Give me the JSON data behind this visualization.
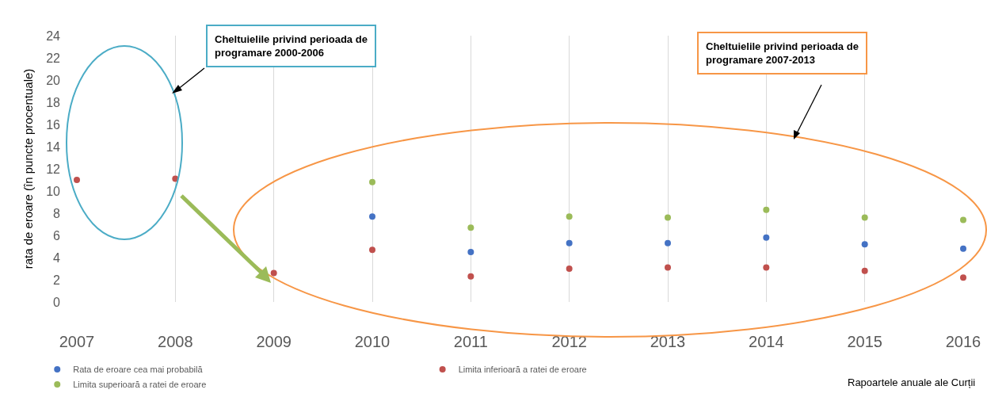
{
  "chart_data": {
    "type": "scatter",
    "ylabel": "rata de eroare (în puncte procentuale)",
    "x": [
      2007,
      2008,
      2009,
      2010,
      2011,
      2012,
      2013,
      2014,
      2015,
      2016
    ],
    "xlim": [
      2007,
      2016
    ],
    "xticks": [
      2007,
      2008,
      2009,
      2010,
      2011,
      2012,
      2013,
      2014,
      2015,
      2016
    ],
    "ylim": [
      0,
      24
    ],
    "yticks": [
      0,
      2,
      4,
      6,
      8,
      10,
      12,
      14,
      16,
      18,
      20,
      22,
      24
    ],
    "grid": "x",
    "legend": "bottom left",
    "marker": "circle",
    "series": [
      {
        "name": "Rata de eroare cea mai probabilă",
        "color": "#4472c4",
        "values": [
          null,
          null,
          null,
          7.7,
          4.5,
          5.3,
          5.3,
          5.8,
          5.2,
          4.8
        ]
      },
      {
        "name": "Limita inferioară a ratei de eroare",
        "color": "#c0504d",
        "values": [
          11.0,
          11.1,
          2.6,
          4.7,
          2.3,
          3.0,
          3.1,
          3.1,
          2.8,
          2.2
        ]
      },
      {
        "name": "Limita superioară a ratei de eroare",
        "color": "#9bbb59",
        "values": [
          null,
          null,
          null,
          10.8,
          6.7,
          7.7,
          7.6,
          8.3,
          7.6,
          7.4
        ]
      }
    ],
    "annotations": [
      "Cheltuielile privind perioada de programare 2000-2006",
      "Cheltuielile privind perioada de programare 2007-2013",
      "Rapoartele anuale ale Curții"
    ]
  }
}
